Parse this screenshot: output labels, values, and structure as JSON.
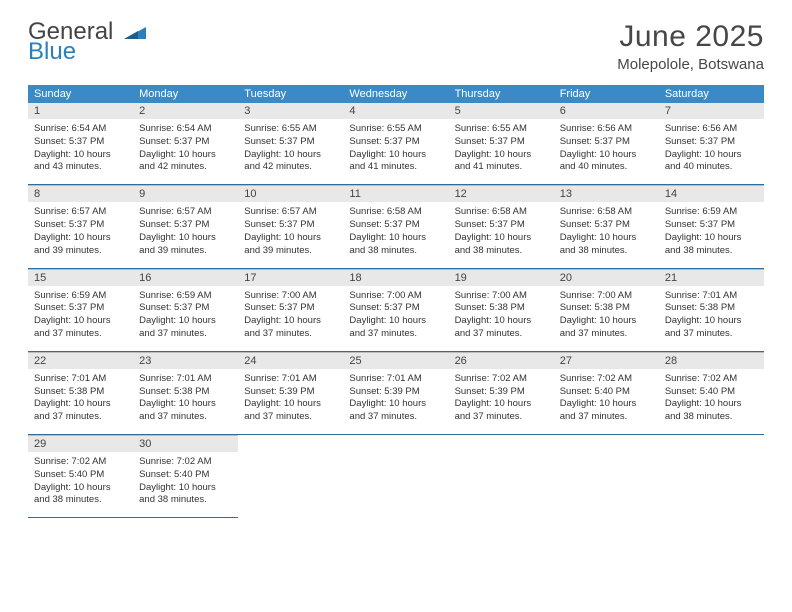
{
  "logo": {
    "word1": "General",
    "word2": "Blue"
  },
  "title": "June 2025",
  "location": "Molepolole, Botswana",
  "header_bg": "#3a8ac7",
  "daynum_bg": "#e8e8e8",
  "border_color": "#2c6ea0",
  "day_headers": [
    "Sunday",
    "Monday",
    "Tuesday",
    "Wednesday",
    "Thursday",
    "Friday",
    "Saturday"
  ],
  "weeks": [
    [
      {
        "n": "1",
        "sr": "Sunrise: 6:54 AM",
        "ss": "Sunset: 5:37 PM",
        "d1": "Daylight: 10 hours",
        "d2": "and 43 minutes."
      },
      {
        "n": "2",
        "sr": "Sunrise: 6:54 AM",
        "ss": "Sunset: 5:37 PM",
        "d1": "Daylight: 10 hours",
        "d2": "and 42 minutes."
      },
      {
        "n": "3",
        "sr": "Sunrise: 6:55 AM",
        "ss": "Sunset: 5:37 PM",
        "d1": "Daylight: 10 hours",
        "d2": "and 42 minutes."
      },
      {
        "n": "4",
        "sr": "Sunrise: 6:55 AM",
        "ss": "Sunset: 5:37 PM",
        "d1": "Daylight: 10 hours",
        "d2": "and 41 minutes."
      },
      {
        "n": "5",
        "sr": "Sunrise: 6:55 AM",
        "ss": "Sunset: 5:37 PM",
        "d1": "Daylight: 10 hours",
        "d2": "and 41 minutes."
      },
      {
        "n": "6",
        "sr": "Sunrise: 6:56 AM",
        "ss": "Sunset: 5:37 PM",
        "d1": "Daylight: 10 hours",
        "d2": "and 40 minutes."
      },
      {
        "n": "7",
        "sr": "Sunrise: 6:56 AM",
        "ss": "Sunset: 5:37 PM",
        "d1": "Daylight: 10 hours",
        "d2": "and 40 minutes."
      }
    ],
    [
      {
        "n": "8",
        "sr": "Sunrise: 6:57 AM",
        "ss": "Sunset: 5:37 PM",
        "d1": "Daylight: 10 hours",
        "d2": "and 39 minutes."
      },
      {
        "n": "9",
        "sr": "Sunrise: 6:57 AM",
        "ss": "Sunset: 5:37 PM",
        "d1": "Daylight: 10 hours",
        "d2": "and 39 minutes."
      },
      {
        "n": "10",
        "sr": "Sunrise: 6:57 AM",
        "ss": "Sunset: 5:37 PM",
        "d1": "Daylight: 10 hours",
        "d2": "and 39 minutes."
      },
      {
        "n": "11",
        "sr": "Sunrise: 6:58 AM",
        "ss": "Sunset: 5:37 PM",
        "d1": "Daylight: 10 hours",
        "d2": "and 38 minutes."
      },
      {
        "n": "12",
        "sr": "Sunrise: 6:58 AM",
        "ss": "Sunset: 5:37 PM",
        "d1": "Daylight: 10 hours",
        "d2": "and 38 minutes."
      },
      {
        "n": "13",
        "sr": "Sunrise: 6:58 AM",
        "ss": "Sunset: 5:37 PM",
        "d1": "Daylight: 10 hours",
        "d2": "and 38 minutes."
      },
      {
        "n": "14",
        "sr": "Sunrise: 6:59 AM",
        "ss": "Sunset: 5:37 PM",
        "d1": "Daylight: 10 hours",
        "d2": "and 38 minutes."
      }
    ],
    [
      {
        "n": "15",
        "sr": "Sunrise: 6:59 AM",
        "ss": "Sunset: 5:37 PM",
        "d1": "Daylight: 10 hours",
        "d2": "and 37 minutes."
      },
      {
        "n": "16",
        "sr": "Sunrise: 6:59 AM",
        "ss": "Sunset: 5:37 PM",
        "d1": "Daylight: 10 hours",
        "d2": "and 37 minutes."
      },
      {
        "n": "17",
        "sr": "Sunrise: 7:00 AM",
        "ss": "Sunset: 5:37 PM",
        "d1": "Daylight: 10 hours",
        "d2": "and 37 minutes."
      },
      {
        "n": "18",
        "sr": "Sunrise: 7:00 AM",
        "ss": "Sunset: 5:37 PM",
        "d1": "Daylight: 10 hours",
        "d2": "and 37 minutes."
      },
      {
        "n": "19",
        "sr": "Sunrise: 7:00 AM",
        "ss": "Sunset: 5:38 PM",
        "d1": "Daylight: 10 hours",
        "d2": "and 37 minutes."
      },
      {
        "n": "20",
        "sr": "Sunrise: 7:00 AM",
        "ss": "Sunset: 5:38 PM",
        "d1": "Daylight: 10 hours",
        "d2": "and 37 minutes."
      },
      {
        "n": "21",
        "sr": "Sunrise: 7:01 AM",
        "ss": "Sunset: 5:38 PM",
        "d1": "Daylight: 10 hours",
        "d2": "and 37 minutes."
      }
    ],
    [
      {
        "n": "22",
        "sr": "Sunrise: 7:01 AM",
        "ss": "Sunset: 5:38 PM",
        "d1": "Daylight: 10 hours",
        "d2": "and 37 minutes."
      },
      {
        "n": "23",
        "sr": "Sunrise: 7:01 AM",
        "ss": "Sunset: 5:38 PM",
        "d1": "Daylight: 10 hours",
        "d2": "and 37 minutes."
      },
      {
        "n": "24",
        "sr": "Sunrise: 7:01 AM",
        "ss": "Sunset: 5:39 PM",
        "d1": "Daylight: 10 hours",
        "d2": "and 37 minutes."
      },
      {
        "n": "25",
        "sr": "Sunrise: 7:01 AM",
        "ss": "Sunset: 5:39 PM",
        "d1": "Daylight: 10 hours",
        "d2": "and 37 minutes."
      },
      {
        "n": "26",
        "sr": "Sunrise: 7:02 AM",
        "ss": "Sunset: 5:39 PM",
        "d1": "Daylight: 10 hours",
        "d2": "and 37 minutes."
      },
      {
        "n": "27",
        "sr": "Sunrise: 7:02 AM",
        "ss": "Sunset: 5:40 PM",
        "d1": "Daylight: 10 hours",
        "d2": "and 37 minutes."
      },
      {
        "n": "28",
        "sr": "Sunrise: 7:02 AM",
        "ss": "Sunset: 5:40 PM",
        "d1": "Daylight: 10 hours",
        "d2": "and 38 minutes."
      }
    ],
    [
      {
        "n": "29",
        "sr": "Sunrise: 7:02 AM",
        "ss": "Sunset: 5:40 PM",
        "d1": "Daylight: 10 hours",
        "d2": "and 38 minutes."
      },
      {
        "n": "30",
        "sr": "Sunrise: 7:02 AM",
        "ss": "Sunset: 5:40 PM",
        "d1": "Daylight: 10 hours",
        "d2": "and 38 minutes."
      },
      null,
      null,
      null,
      null,
      null
    ]
  ]
}
